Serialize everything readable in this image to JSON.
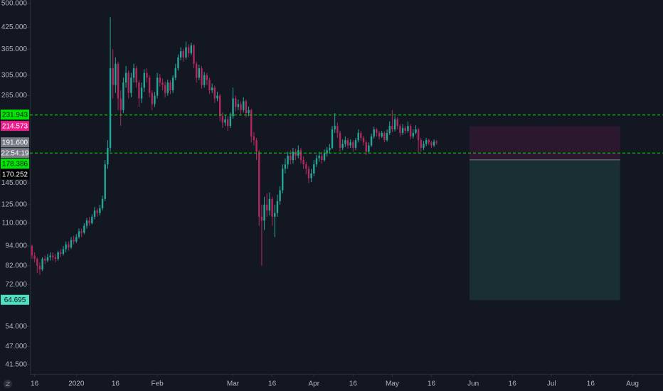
{
  "chart_data": {
    "type": "candlestick",
    "log_scale": true,
    "grid": false,
    "up_color": "#26a69a",
    "down_color": "#b2285f",
    "ylim": [
      39.1,
      512.4
    ],
    "yticks": [
      {
        "value": 500,
        "label": "500.000"
      },
      {
        "value": 425,
        "label": "425.000"
      },
      {
        "value": 365,
        "label": "365.000"
      },
      {
        "value": 305,
        "label": "305.000"
      },
      {
        "value": 265,
        "label": "265.000"
      },
      {
        "value": 145,
        "label": "145.000"
      },
      {
        "value": 125,
        "label": "125.000"
      },
      {
        "value": 110,
        "label": "110.000"
      },
      {
        "value": 94,
        "label": "94.000"
      },
      {
        "value": 82,
        "label": "82.000"
      },
      {
        "value": 72,
        "label": "72.000"
      },
      {
        "value": 54,
        "label": "54.000"
      },
      {
        "value": 47,
        "label": "47.000"
      },
      {
        "value": 41.5,
        "label": "41.500"
      }
    ],
    "xlim": [
      -0.8,
      241.7
    ],
    "xticks": [
      {
        "value": 1,
        "label": "16"
      },
      {
        "value": 17,
        "label": "2020"
      },
      {
        "value": 32,
        "label": "16"
      },
      {
        "value": 48,
        "label": "Feb"
      },
      {
        "value": 77,
        "label": "Mar"
      },
      {
        "value": 92,
        "label": "16"
      },
      {
        "value": 108,
        "label": "Apr"
      },
      {
        "value": 123,
        "label": "16"
      },
      {
        "value": 138,
        "label": "May"
      },
      {
        "value": 153,
        "label": "16"
      },
      {
        "value": 169,
        "label": "Jun"
      },
      {
        "value": 184,
        "label": "16"
      },
      {
        "value": 199,
        "label": "Jul"
      },
      {
        "value": 214,
        "label": "16"
      },
      {
        "value": 230,
        "label": "Aug"
      }
    ],
    "x": [
      0,
      1,
      2,
      3,
      4,
      5,
      6,
      7,
      8,
      9,
      10,
      11,
      12,
      13,
      14,
      15,
      16,
      17,
      18,
      19,
      20,
      21,
      22,
      23,
      24,
      25,
      26,
      27,
      28,
      29,
      30,
      31,
      32,
      33,
      34,
      35,
      36,
      37,
      38,
      39,
      40,
      41,
      42,
      43,
      44,
      45,
      46,
      47,
      48,
      49,
      50,
      51,
      52,
      53,
      54,
      55,
      56,
      57,
      58,
      59,
      60,
      61,
      62,
      63,
      64,
      65,
      66,
      67,
      68,
      69,
      70,
      71,
      72,
      73,
      74,
      75,
      76,
      77,
      78,
      79,
      80,
      81,
      82,
      83,
      84,
      85,
      86,
      87,
      88,
      89,
      90,
      91,
      92,
      93,
      94,
      95,
      96,
      97,
      98,
      99,
      100,
      101,
      102,
      103,
      104,
      105,
      106,
      107,
      108,
      109,
      110,
      111,
      112,
      113,
      114,
      115,
      116,
      117,
      118,
      119,
      120,
      121,
      122,
      123,
      124,
      125,
      126,
      127,
      128,
      129,
      130,
      131,
      132,
      133,
      134,
      135,
      136,
      137,
      138,
      139,
      140,
      141,
      142,
      143,
      144,
      145,
      146,
      147,
      148,
      149,
      150,
      151,
      152,
      153,
      154,
      155
    ],
    "open": [
      94,
      88,
      86,
      82,
      80,
      86,
      85,
      87,
      88,
      87,
      86,
      90,
      89,
      92,
      95,
      93,
      98,
      97,
      100,
      104,
      103,
      108,
      112,
      110,
      115,
      120,
      118,
      122,
      130,
      165,
      185,
      320,
      285,
      330,
      260,
      240,
      290,
      310,
      270,
      300,
      320,
      290,
      260,
      280,
      310,
      300,
      270,
      250,
      265,
      300,
      290,
      285,
      270,
      290,
      275,
      300,
      320,
      345,
      360,
      345,
      370,
      355,
      375,
      330,
      300,
      320,
      285,
      305,
      295,
      275,
      280,
      260,
      265,
      230,
      220,
      225,
      215,
      230,
      260,
      245,
      250,
      240,
      255,
      235,
      240,
      200,
      195,
      180,
      115,
      112,
      125,
      120,
      130,
      115,
      118,
      128,
      138,
      160,
      165,
      175,
      170,
      180,
      175,
      182,
      170,
      165,
      160,
      150,
      155,
      165,
      172,
      175,
      170,
      178,
      182,
      185,
      210,
      215,
      205,
      185,
      190,
      195,
      188,
      192,
      185,
      195,
      205,
      198,
      192,
      180,
      188,
      200,
      210,
      205,
      200,
      205,
      195,
      205,
      215,
      210,
      225,
      215,
      205,
      212,
      208,
      215,
      200,
      205,
      210,
      195,
      185,
      190,
      195,
      192,
      188,
      193
    ],
    "high": [
      95,
      90,
      87,
      84,
      87,
      88,
      89,
      90,
      90,
      89,
      91,
      92,
      94,
      97,
      97,
      100,
      101,
      102,
      106,
      106,
      110,
      114,
      115,
      117,
      123,
      122,
      125,
      133,
      170,
      195,
      455,
      365,
      345,
      335,
      275,
      300,
      325,
      315,
      310,
      330,
      325,
      295,
      290,
      318,
      320,
      305,
      275,
      272,
      310,
      308,
      298,
      292,
      296,
      295,
      305,
      330,
      352,
      370,
      366,
      385,
      378,
      382,
      378,
      335,
      328,
      325,
      312,
      310,
      300,
      288,
      284,
      272,
      268,
      236,
      232,
      230,
      236,
      280,
      265,
      258,
      255,
      262,
      258,
      246,
      242,
      206,
      198,
      182,
      125,
      132,
      135,
      136,
      132,
      125,
      134,
      142,
      165,
      172,
      180,
      182,
      185,
      184,
      188,
      185,
      174,
      168,
      163,
      160,
      170,
      176,
      180,
      180,
      183,
      186,
      190,
      215,
      235,
      220,
      208,
      196,
      200,
      198,
      196,
      195,
      198,
      210,
      208,
      201,
      195,
      192,
      204,
      214,
      212,
      208,
      208,
      207,
      210,
      222,
      240,
      230,
      228,
      218,
      218,
      215,
      222,
      218,
      210,
      216,
      212,
      198,
      194,
      198,
      197,
      194,
      196,
      195
    ],
    "low": [
      86,
      84,
      78,
      77,
      79,
      83,
      84,
      85,
      85,
      84,
      85,
      87,
      88,
      90,
      91,
      92,
      95,
      96,
      99,
      100,
      102,
      106,
      108,
      109,
      113,
      115,
      116,
      120,
      128,
      160,
      180,
      260,
      270,
      240,
      215,
      235,
      280,
      260,
      262,
      290,
      280,
      245,
      252,
      272,
      290,
      262,
      240,
      245,
      260,
      282,
      275,
      262,
      265,
      268,
      270,
      295,
      315,
      338,
      335,
      340,
      345,
      350,
      320,
      290,
      295,
      278,
      280,
      285,
      268,
      270,
      252,
      255,
      222,
      212,
      215,
      208,
      212,
      226,
      238,
      240,
      233,
      236,
      228,
      230,
      192,
      188,
      170,
      108,
      82,
      105,
      115,
      116,
      108,
      100,
      115,
      125,
      135,
      155,
      160,
      165,
      166,
      170,
      172,
      166,
      160,
      154,
      145,
      146,
      152,
      162,
      168,
      166,
      168,
      174,
      178,
      183,
      205,
      198,
      180,
      182,
      186,
      184,
      185,
      180,
      182,
      192,
      194,
      188,
      176,
      178,
      186,
      197,
      200,
      196,
      198,
      192,
      193,
      202,
      206,
      207,
      210,
      200,
      202,
      204,
      205,
      196,
      197,
      203,
      178,
      180,
      182,
      187,
      189,
      185,
      186,
      189
    ],
    "close": [
      88,
      86,
      82,
      80,
      86,
      85,
      87,
      88,
      87,
      86,
      90,
      89,
      92,
      95,
      93,
      98,
      97,
      100,
      104,
      103,
      108,
      112,
      110,
      115,
      120,
      118,
      122,
      130,
      165,
      185,
      320,
      285,
      330,
      260,
      240,
      290,
      310,
      270,
      300,
      320,
      290,
      260,
      280,
      310,
      300,
      270,
      250,
      265,
      300,
      290,
      285,
      270,
      290,
      275,
      300,
      320,
      345,
      360,
      345,
      370,
      355,
      375,
      330,
      300,
      320,
      285,
      305,
      295,
      275,
      280,
      260,
      265,
      230,
      220,
      225,
      215,
      230,
      260,
      245,
      250,
      240,
      255,
      235,
      240,
      200,
      195,
      180,
      115,
      112,
      125,
      120,
      130,
      115,
      118,
      128,
      138,
      160,
      165,
      175,
      170,
      180,
      175,
      182,
      170,
      165,
      160,
      150,
      155,
      165,
      172,
      175,
      170,
      178,
      182,
      185,
      210,
      215,
      205,
      185,
      190,
      195,
      188,
      192,
      185,
      195,
      205,
      198,
      192,
      180,
      188,
      200,
      210,
      205,
      200,
      205,
      195,
      205,
      215,
      210,
      225,
      215,
      205,
      212,
      208,
      215,
      200,
      205,
      210,
      195,
      185,
      190,
      195,
      192,
      188,
      193,
      191.6
    ],
    "horizontal_lines": {
      "values": [
        231.943,
        178.386
      ],
      "color": "#00e600"
    },
    "last_price": {
      "value": 191.6,
      "label": "191.600",
      "countdown": "22:54:19"
    },
    "position": {
      "stop": 214.573,
      "entry": 170.252,
      "target": 64.695,
      "x": [
        167.6,
        225.3
      ],
      "stop_color": "#e91e8c",
      "entry_color": "#000000",
      "target_color": "#4ee0c0"
    }
  }
}
